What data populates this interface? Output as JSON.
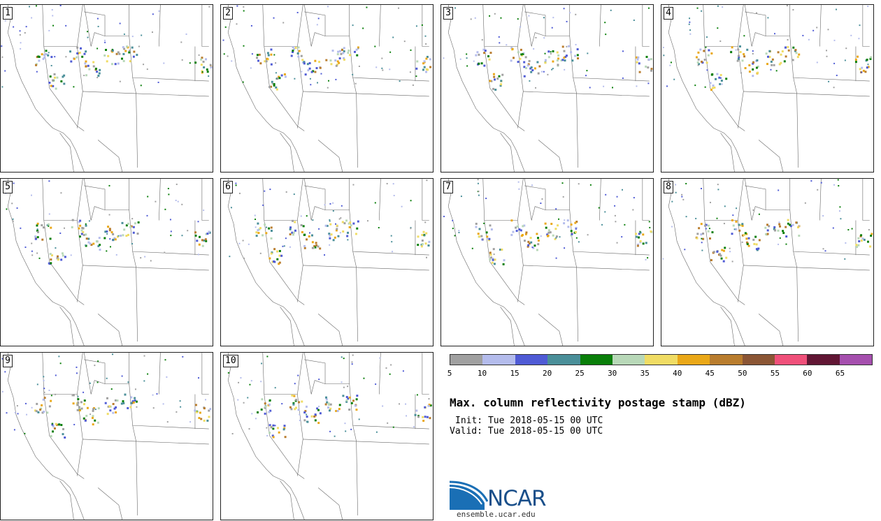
{
  "panels": [
    {
      "label": "1"
    },
    {
      "label": "2"
    },
    {
      "label": "3"
    },
    {
      "label": "4"
    },
    {
      "label": "5"
    },
    {
      "label": "6"
    },
    {
      "label": "7"
    },
    {
      "label": "8"
    },
    {
      "label": "9"
    },
    {
      "label": "10"
    }
  ],
  "colorbar": {
    "colors": [
      "#a0a0a0",
      "#b4bcec",
      "#4f5bd5",
      "#4a8f99",
      "#0a7f0a",
      "#b8d8b8",
      "#f0dc64",
      "#eaa818",
      "#b97d2e",
      "#8b5635",
      "#f0507a",
      "#611634",
      "#a54fae"
    ],
    "ticks": [
      "5",
      "10",
      "15",
      "20",
      "25",
      "30",
      "35",
      "40",
      "45",
      "50",
      "55",
      "60",
      "65"
    ]
  },
  "title": "Max. column reflectivity postage stamp (dBZ)",
  "init": "Init: Tue 2018-05-15 00 UTC",
  "valid": "Valid: Tue 2018-05-15 00 UTC",
  "logo": {
    "text": "NCAR",
    "url": "ensemble.ucar.edu",
    "icon": "ncar-logo-icon"
  }
}
